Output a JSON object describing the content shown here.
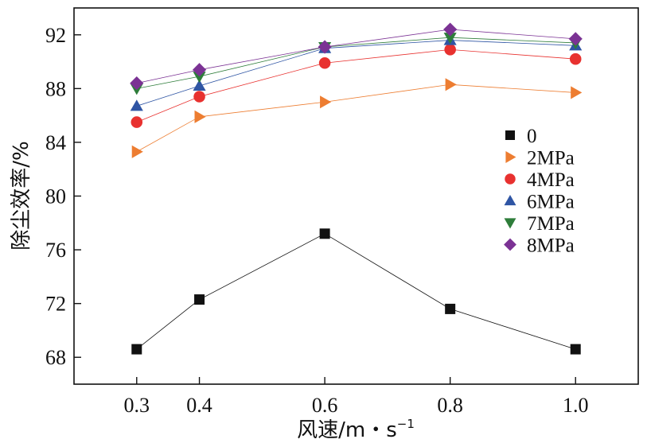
{
  "chart_data": {
    "type": "line",
    "title": "",
    "xlabel": "风速/m・s",
    "xlabel_sup": "−1",
    "ylabel": "除尘效率/%",
    "x": [
      0.3,
      0.4,
      0.6,
      0.8,
      1.0
    ],
    "x_tick_labels": [
      "0.3",
      "0.4",
      "0.6",
      "0.8",
      "1.0"
    ],
    "xlim": [
      0.2,
      1.1
    ],
    "ylim": [
      66,
      94
    ],
    "y_ticks": [
      68,
      72,
      76,
      80,
      84,
      88,
      92
    ],
    "y_tick_labels": [
      "68",
      "72",
      "76",
      "80",
      "84",
      "88",
      "92"
    ],
    "grid": false,
    "legend_position": "right",
    "series": [
      {
        "name": "0",
        "marker": "square",
        "color": "#111111",
        "values": [
          68.6,
          72.3,
          77.2,
          71.6,
          68.6
        ]
      },
      {
        "name": "2MPa",
        "marker": "triangle-right",
        "color": "#ed7d31",
        "values": [
          83.3,
          85.9,
          87.0,
          88.3,
          87.7
        ]
      },
      {
        "name": "4MPa",
        "marker": "circle",
        "color": "#e8312f",
        "values": [
          85.5,
          87.4,
          89.9,
          90.9,
          90.2
        ]
      },
      {
        "name": "6MPa",
        "marker": "triangle-up",
        "color": "#2f55a4",
        "values": [
          86.7,
          88.2,
          91.0,
          91.6,
          91.2
        ]
      },
      {
        "name": "7MPa",
        "marker": "triangle-down",
        "color": "#2e7d3a",
        "values": [
          88.0,
          88.9,
          91.1,
          91.8,
          91.4
        ]
      },
      {
        "name": "8MPa",
        "marker": "diamond",
        "color": "#7b3294",
        "values": [
          88.4,
          89.4,
          91.1,
          92.4,
          91.7
        ]
      }
    ]
  }
}
